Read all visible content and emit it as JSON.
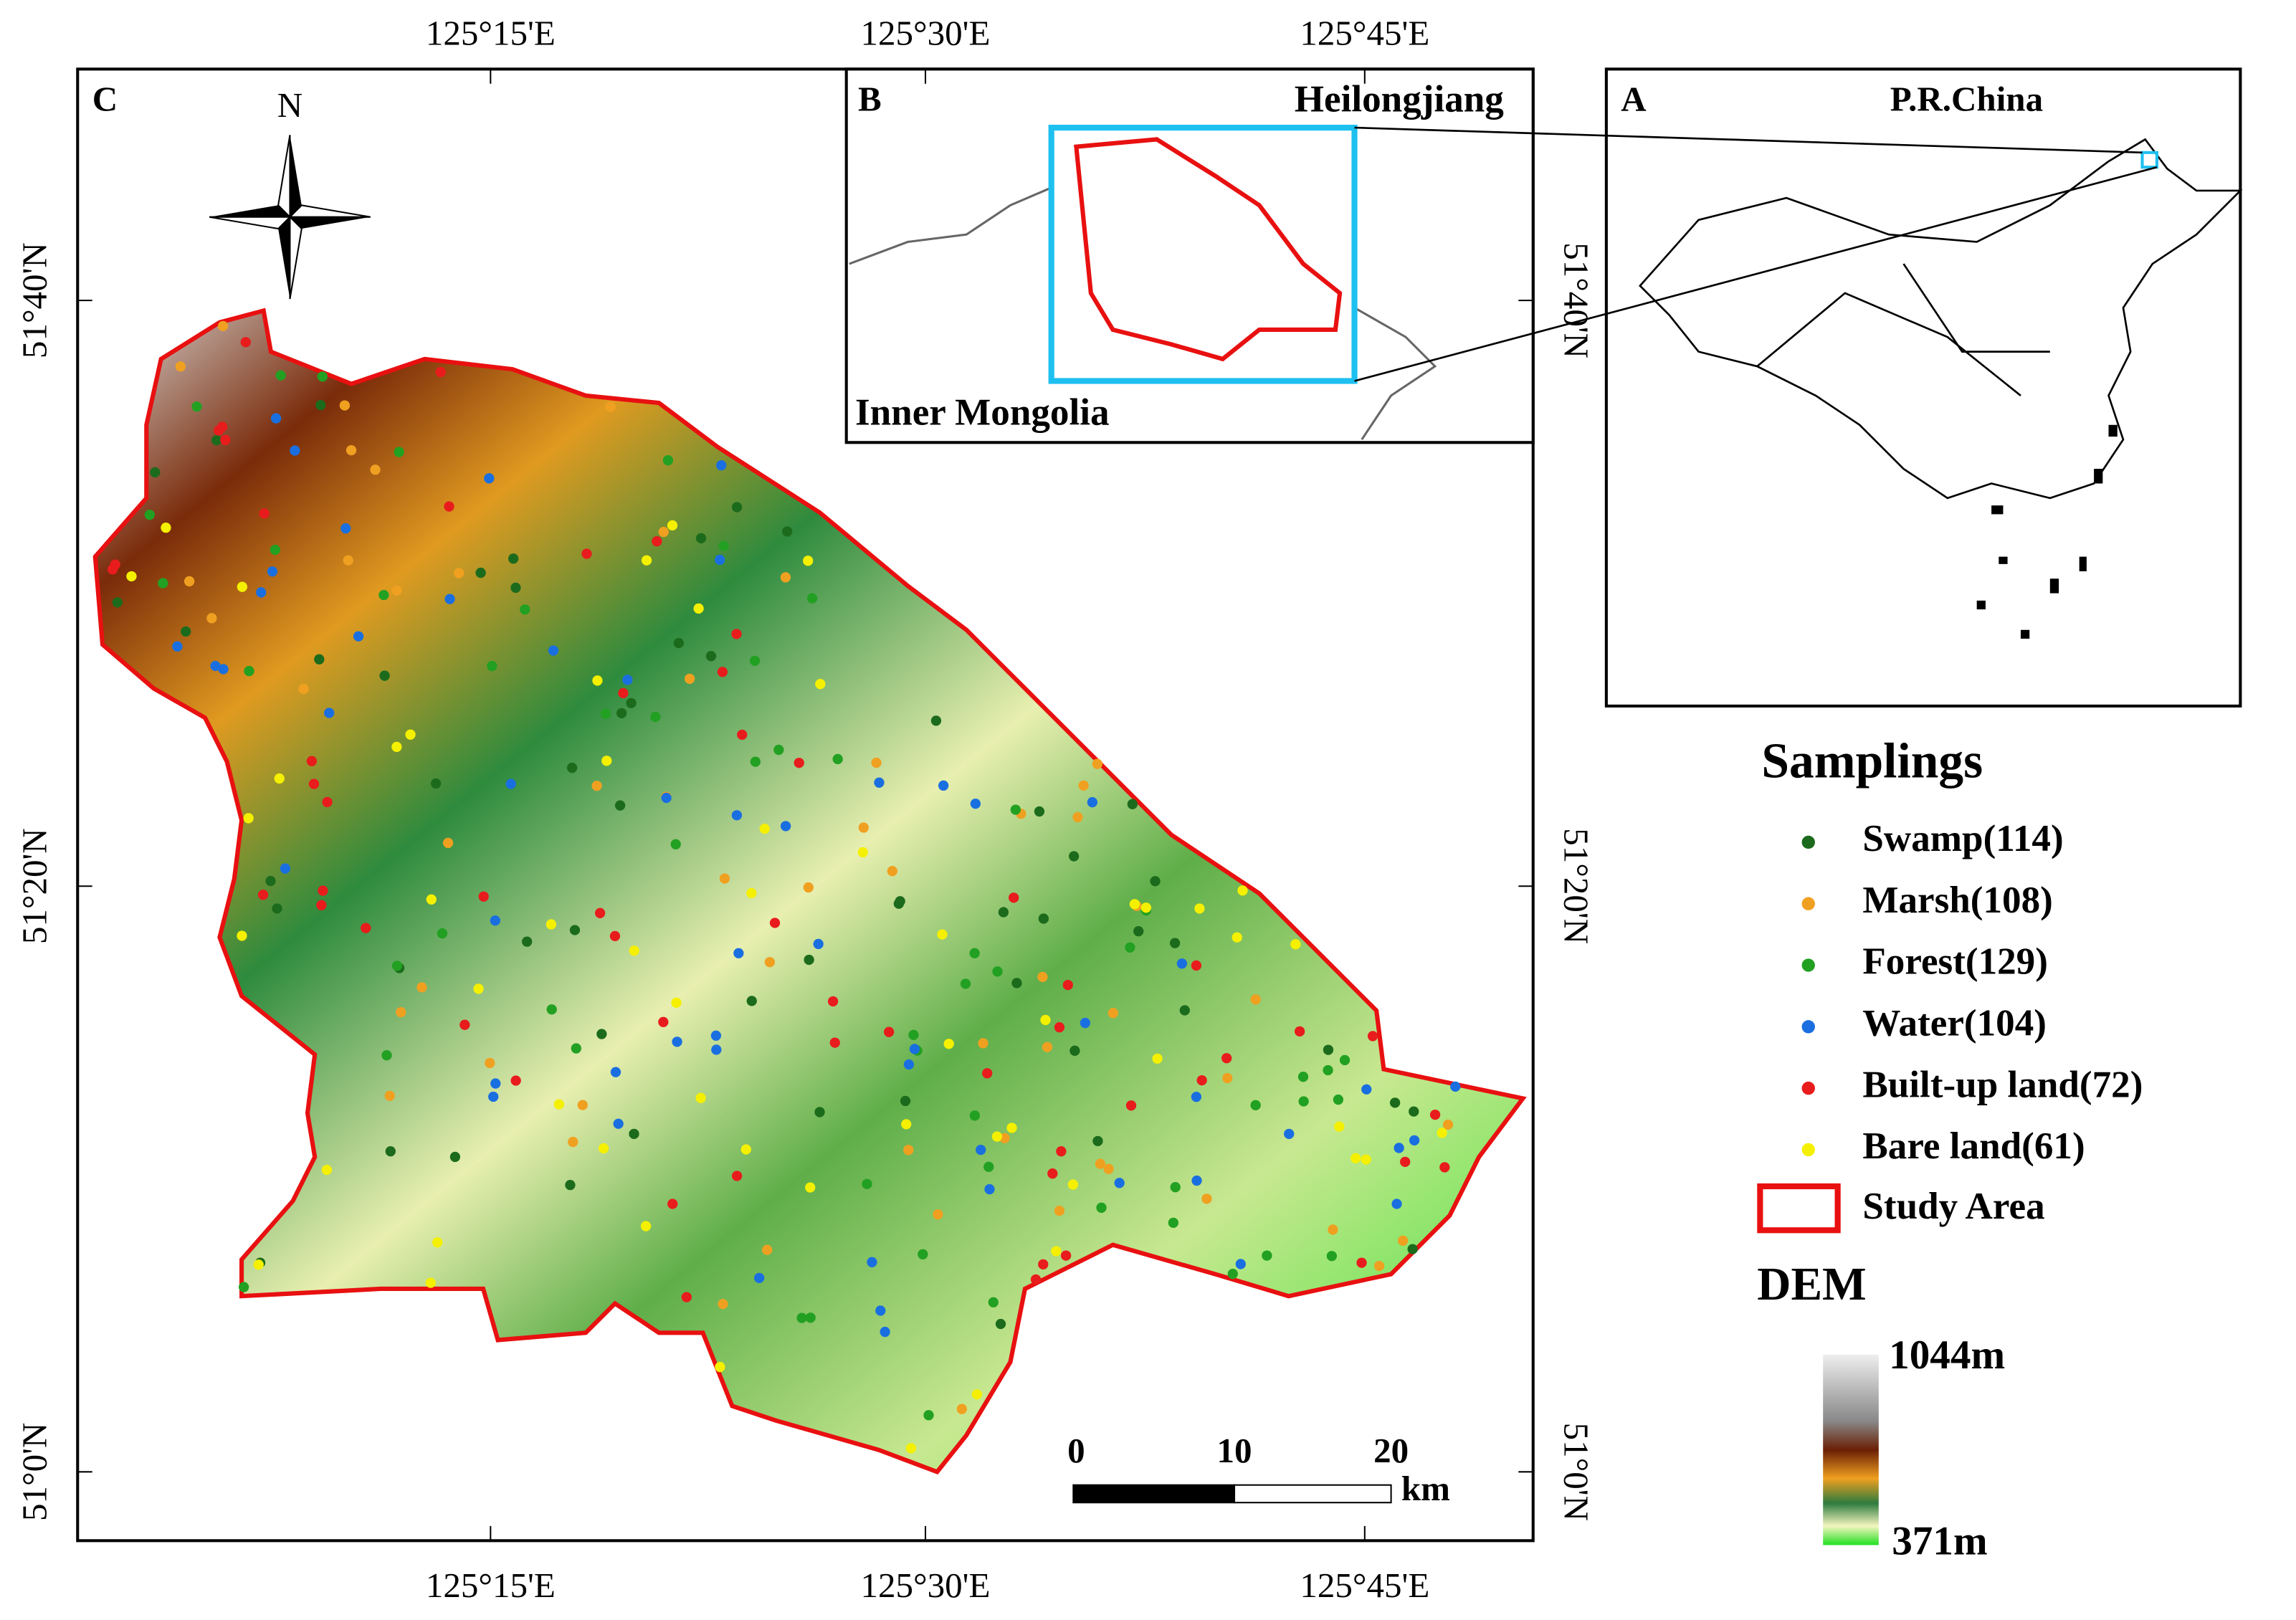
{
  "panels": {
    "c": {
      "label": "C"
    },
    "b": {
      "label": "B",
      "north_region": "Heilongjiang",
      "south_region": "Inner Mongolia"
    },
    "a": {
      "label": "A",
      "title": "P.R.China"
    }
  },
  "axes": {
    "longitudes": [
      "125°15'E",
      "125°30'E",
      "125°45'E"
    ],
    "latitudes": [
      "51°40'N",
      "51°20'N",
      "51°0'N"
    ]
  },
  "north_arrow": "N",
  "scale_bar": {
    "ticks": [
      "0",
      "10",
      "20"
    ],
    "unit": "km"
  },
  "legend": {
    "title": "Samplings",
    "items": [
      {
        "label": "Swamp(114)",
        "color": "#1c6b1c"
      },
      {
        "label": "Marsh(108)",
        "color": "#f0a020"
      },
      {
        "label": "Forest(129)",
        "color": "#22a022"
      },
      {
        "label": "Water(104)",
        "color": "#1a6fe0"
      },
      {
        "label": "Built-up land(72)",
        "color": "#e81c1c"
      },
      {
        "label": "Bare land(61)",
        "color": "#f5f000"
      }
    ],
    "study_area": "Study Area"
  },
  "dem": {
    "title": "DEM",
    "max": "1044m",
    "min": "371m"
  }
}
